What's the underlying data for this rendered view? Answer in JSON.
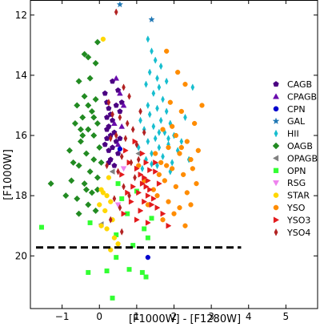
{
  "chart_data": {
    "type": "scatter",
    "title": "",
    "xlabel": "[F1000W] - [F1280W]",
    "ylabel": "[F1000W]",
    "xlim": [
      -1.85,
      5.85
    ],
    "ylim": [
      21.75,
      11.5
    ],
    "y_inverted": true,
    "x_ticks": [
      -1,
      0,
      1,
      2,
      3,
      4,
      5
    ],
    "x_tick_labels": [
      "−1",
      "0",
      "1",
      "2",
      "3",
      "4",
      "5"
    ],
    "y_ticks": [
      12,
      14,
      16,
      18,
      20
    ],
    "y_tick_labels": [
      "12",
      "14",
      "16",
      "18",
      "20"
    ],
    "grid": false,
    "legend_position": "right",
    "reference_line": {
      "y": 19.72,
      "x_range": [
        -1.7,
        3.8
      ],
      "style": "dashed",
      "color": "#000000"
    },
    "series": [
      {
        "name": "CAGB",
        "marker": "pentagon",
        "color": "#4b0082",
        "points": [
          [
            0.15,
            14.6
          ],
          [
            0.2,
            14.9
          ],
          [
            0.25,
            15.1
          ],
          [
            0.3,
            15.3
          ],
          [
            0.2,
            15.4
          ],
          [
            0.35,
            15.5
          ],
          [
            0.25,
            15.7
          ],
          [
            0.4,
            15.9
          ],
          [
            0.3,
            16.0
          ],
          [
            0.2,
            16.1
          ],
          [
            0.45,
            16.2
          ],
          [
            0.35,
            16.4
          ],
          [
            0.25,
            16.5
          ],
          [
            0.5,
            16.6
          ],
          [
            0.3,
            16.8
          ],
          [
            0.4,
            17.0
          ],
          [
            0.2,
            15.8
          ],
          [
            0.55,
            15.2
          ],
          [
            0.6,
            14.9
          ],
          [
            0.5,
            14.5
          ],
          [
            0.35,
            14.2
          ],
          [
            0.45,
            15.0
          ],
          [
            0.15,
            16.3
          ],
          [
            0.25,
            16.9
          ],
          [
            0.55,
            16.1
          ]
        ]
      },
      {
        "name": "CPAGB",
        "marker": "triangle",
        "color": "#6a0dad",
        "points": [
          [
            0.45,
            14.1
          ],
          [
            0.55,
            14.6
          ],
          [
            0.65,
            15.0
          ],
          [
            0.4,
            15.6
          ],
          [
            0.6,
            15.7
          ],
          [
            0.5,
            16.3
          ]
        ]
      },
      {
        "name": "CPN",
        "marker": "circle",
        "color": "#0000cd",
        "points": [
          [
            1.3,
            20.05
          ],
          [
            0.55,
            16.45
          ]
        ]
      },
      {
        "name": "GAL",
        "marker": "star",
        "color": "#1f77b4",
        "points": [
          [
            0.55,
            11.65
          ],
          [
            1.4,
            12.15
          ]
        ]
      },
      {
        "name": "HII",
        "marker": "thin_diamond",
        "color": "#17becf",
        "points": [
          [
            1.3,
            12.8
          ],
          [
            1.4,
            13.2
          ],
          [
            1.5,
            13.5
          ],
          [
            1.35,
            13.9
          ],
          [
            1.55,
            14.1
          ],
          [
            1.25,
            14.3
          ],
          [
            1.6,
            14.4
          ],
          [
            1.45,
            14.6
          ],
          [
            1.7,
            14.8
          ],
          [
            1.3,
            15.0
          ],
          [
            1.55,
            15.1
          ],
          [
            1.8,
            15.2
          ],
          [
            1.35,
            15.3
          ],
          [
            1.65,
            15.5
          ],
          [
            1.9,
            15.6
          ],
          [
            1.45,
            15.7
          ],
          [
            1.2,
            15.8
          ],
          [
            1.75,
            15.9
          ],
          [
            2.0,
            16.0
          ],
          [
            1.5,
            16.1
          ],
          [
            1.3,
            16.2
          ],
          [
            1.85,
            16.3
          ],
          [
            1.6,
            16.4
          ],
          [
            2.1,
            16.5
          ],
          [
            1.4,
            16.6
          ],
          [
            1.7,
            16.7
          ],
          [
            1.25,
            16.8
          ],
          [
            1.95,
            16.9
          ],
          [
            1.55,
            17.0
          ],
          [
            2.3,
            15.4
          ],
          [
            2.5,
            14.4
          ],
          [
            1.1,
            15.5
          ],
          [
            1.05,
            16.4
          ],
          [
            1.8,
            14.2
          ],
          [
            2.2,
            16.2
          ],
          [
            1.9,
            17.2
          ],
          [
            1.15,
            17.1
          ],
          [
            1.65,
            13.7
          ],
          [
            1.85,
            16.1
          ],
          [
            2.4,
            16.8
          ],
          [
            1.6,
            15.9
          ],
          [
            1.4,
            16.95
          ]
        ]
      },
      {
        "name": "OAGB",
        "marker": "diamond",
        "color": "#228b22",
        "points": [
          [
            -0.05,
            12.9
          ],
          [
            -0.3,
            13.4
          ],
          [
            -0.4,
            13.3
          ],
          [
            -0.1,
            13.6
          ],
          [
            -0.55,
            14.2
          ],
          [
            -0.25,
            14.1
          ],
          [
            -0.4,
            14.7
          ],
          [
            -0.1,
            14.8
          ],
          [
            -0.6,
            15.0
          ],
          [
            -0.2,
            15.2
          ],
          [
            -0.45,
            15.4
          ],
          [
            -0.05,
            15.6
          ],
          [
            -0.3,
            15.8
          ],
          [
            -0.15,
            16.0
          ],
          [
            -0.5,
            16.2
          ],
          [
            0.0,
            16.4
          ],
          [
            -0.35,
            16.6
          ],
          [
            -0.15,
            16.8
          ],
          [
            -0.55,
            17.0
          ],
          [
            -0.25,
            17.2
          ],
          [
            -0.05,
            17.4
          ],
          [
            -0.4,
            17.6
          ],
          [
            -0.2,
            17.9
          ],
          [
            -0.6,
            18.1
          ],
          [
            -0.3,
            18.3
          ],
          [
            -0.1,
            18.5
          ],
          [
            -0.45,
            16.0
          ],
          [
            -0.65,
            15.6
          ],
          [
            -0.75,
            17.5
          ],
          [
            -0.9,
            18.0
          ],
          [
            -0.55,
            18.6
          ],
          [
            -0.35,
            17.8
          ],
          [
            -0.8,
            16.5
          ],
          [
            -0.15,
            15.4
          ],
          [
            0.05,
            16.9
          ],
          [
            -0.05,
            17.8
          ],
          [
            -0.7,
            16.9
          ],
          [
            -0.3,
            15.0
          ],
          [
            -0.5,
            15.8
          ],
          [
            -1.3,
            17.6
          ]
        ]
      },
      {
        "name": "OPAGB",
        "marker": "triangle_left",
        "color": "#808080",
        "points": [
          [
            0.05,
            18.95
          ],
          [
            0.35,
            17.2
          ],
          [
            1.05,
            16.6
          ]
        ]
      },
      {
        "name": "OPN",
        "marker": "square",
        "color": "#32ff32",
        "points": [
          [
            -1.55,
            19.05
          ],
          [
            -0.3,
            20.55
          ],
          [
            0.2,
            20.5
          ],
          [
            0.45,
            20.05
          ],
          [
            0.8,
            20.45
          ],
          [
            1.15,
            20.55
          ],
          [
            0.35,
            21.4
          ],
          [
            1.25,
            20.7
          ],
          [
            0.75,
            18.6
          ],
          [
            1.4,
            18.75
          ],
          [
            1.2,
            19.1
          ],
          [
            0.45,
            19.3
          ],
          [
            0.9,
            19.65
          ],
          [
            0.6,
            18.1
          ],
          [
            -0.25,
            18.9
          ],
          [
            1.0,
            17.85
          ],
          [
            0.5,
            17.6
          ],
          [
            1.3,
            19.4
          ]
        ]
      },
      {
        "name": "RSG",
        "marker": "triangle_down",
        "color": "#ee82ee",
        "points": [
          [
            0.5,
            18.3
          ],
          [
            0.65,
            17.1
          ]
        ]
      },
      {
        "name": "STAR",
        "marker": "circle",
        "color": "#ffd700",
        "points": [
          [
            0.1,
            12.8
          ],
          [
            0.25,
            17.4
          ],
          [
            0.05,
            17.8
          ],
          [
            0.3,
            18.2
          ],
          [
            0.15,
            18.5
          ],
          [
            0.35,
            18.8
          ],
          [
            0.2,
            19.1
          ],
          [
            0.4,
            19.4
          ],
          [
            0.05,
            19.0
          ],
          [
            0.5,
            19.6
          ],
          [
            0.1,
            17.9
          ],
          [
            0.3,
            19.8
          ],
          [
            0.2,
            18.0
          ],
          [
            0.0,
            18.3
          ]
        ]
      },
      {
        "name": "YSO",
        "marker": "circle",
        "color": "#ff8c00",
        "points": [
          [
            1.8,
            13.2
          ],
          [
            2.1,
            13.9
          ],
          [
            2.3,
            14.3
          ],
          [
            1.9,
            14.9
          ],
          [
            2.2,
            15.2
          ],
          [
            2.55,
            15.6
          ],
          [
            1.7,
            15.8
          ],
          [
            2.05,
            16.0
          ],
          [
            2.35,
            16.2
          ],
          [
            1.85,
            16.4
          ],
          [
            2.15,
            16.6
          ],
          [
            2.45,
            16.8
          ],
          [
            1.65,
            16.9
          ],
          [
            1.95,
            17.1
          ],
          [
            2.25,
            17.3
          ],
          [
            1.75,
            17.5
          ],
          [
            2.05,
            17.7
          ],
          [
            2.35,
            17.9
          ],
          [
            1.55,
            18.0
          ],
          [
            1.85,
            18.2
          ],
          [
            2.15,
            18.4
          ],
          [
            2.6,
            17.6
          ],
          [
            2.75,
            15.0
          ],
          [
            2.45,
            18.3
          ],
          [
            1.5,
            16.6
          ],
          [
            1.6,
            17.3
          ],
          [
            2.0,
            18.6
          ],
          [
            1.7,
            18.8
          ],
          [
            2.5,
            17.1
          ],
          [
            2.2,
            16.4
          ],
          [
            1.95,
            15.7
          ],
          [
            1.45,
            17.8
          ],
          [
            1.3,
            18.3
          ],
          [
            2.3,
            19.0
          ],
          [
            1.2,
            17.5
          ],
          [
            1.05,
            17.0
          ],
          [
            2.65,
            16.5
          ],
          [
            1.8,
            17.0
          ]
        ]
      },
      {
        "name": "YSO3",
        "marker": "triangle_right",
        "color": "#e31a1c",
        "points": [
          [
            1.0,
            17.1
          ],
          [
            1.1,
            17.3
          ],
          [
            1.2,
            17.4
          ],
          [
            1.3,
            17.5
          ],
          [
            1.15,
            17.6
          ],
          [
            1.25,
            17.7
          ],
          [
            1.35,
            17.8
          ],
          [
            1.05,
            17.9
          ],
          [
            1.3,
            18.0
          ],
          [
            1.45,
            18.1
          ],
          [
            1.2,
            18.2
          ],
          [
            1.4,
            18.3
          ],
          [
            1.1,
            18.5
          ],
          [
            1.55,
            18.4
          ],
          [
            0.9,
            17.7
          ],
          [
            1.6,
            17.6
          ],
          [
            0.85,
            18.2
          ],
          [
            1.0,
            18.8
          ],
          [
            1.3,
            18.9
          ],
          [
            0.7,
            16.5
          ],
          [
            0.8,
            16.9
          ],
          [
            0.6,
            17.3
          ],
          [
            1.5,
            17.2
          ],
          [
            1.7,
            18.6
          ],
          [
            1.85,
            19.0
          ],
          [
            0.95,
            16.2
          ],
          [
            1.15,
            16.6
          ],
          [
            0.75,
            17.9
          ],
          [
            1.5,
            16.9
          ],
          [
            0.65,
            18.6
          ],
          [
            1.35,
            17.15
          ],
          [
            1.25,
            16.9
          ]
        ]
      },
      {
        "name": "YSO4",
        "marker": "thin_diamond",
        "color": "#b22222",
        "points": [
          [
            0.45,
            11.9
          ],
          [
            0.65,
            14.4
          ],
          [
            0.8,
            14.7
          ],
          [
            0.55,
            15.4
          ],
          [
            0.9,
            15.8
          ],
          [
            0.7,
            16.1
          ],
          [
            1.0,
            16.3
          ],
          [
            0.6,
            16.7
          ],
          [
            0.85,
            16.9
          ],
          [
            0.5,
            17.2
          ],
          [
            1.1,
            15.2
          ],
          [
            0.75,
            15.6
          ],
          [
            0.45,
            16.0
          ],
          [
            0.95,
            17.4
          ],
          [
            0.65,
            17.7
          ],
          [
            0.4,
            18.1
          ],
          [
            0.55,
            18.4
          ],
          [
            0.3,
            18.8
          ],
          [
            0.6,
            19.2
          ],
          [
            0.2,
            17.0
          ],
          [
            1.2,
            15.9
          ],
          [
            0.35,
            15.3
          ],
          [
            1.05,
            16.8
          ],
          [
            0.8,
            18.0
          ],
          [
            0.3,
            16.1
          ],
          [
            0.25,
            14.9
          ]
        ]
      }
    ]
  }
}
